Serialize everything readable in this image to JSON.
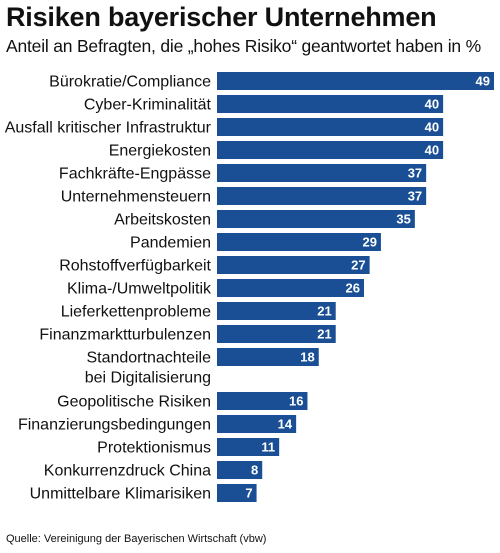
{
  "header": {
    "title": "Risiken bayerischer Unternehmen",
    "subtitle": "Anteil an Befragten, die „hohes Risiko“ geantwortet haben in %"
  },
  "footer": {
    "source": "Quelle: Vereinigung der Bayerischen Wirtschaft (vbw)"
  },
  "chart_data": {
    "type": "bar",
    "orientation": "horizontal",
    "title": "Risiken bayerischer Unternehmen",
    "subtitle": "Anteil an Befragten, die „hohes Risiko“ geantwortet haben in %",
    "categories": [
      "Bürokratie/Compliance",
      "Cyber-Kriminalität",
      "Ausfall kritischer Infrastruktur",
      "Energiekosten",
      "Fachkräfte-Engpässe",
      "Unternehmensteuern",
      "Arbeitskosten",
      "Pandemien",
      "Rohstoffverfügbarkeit",
      "Klima-/Umweltpolitik",
      "Lieferkettenprobleme",
      "Finanzmarktturbulenzen",
      "Standortnachteile\nbei Digitalisierung",
      "Geopolitische Risiken",
      "Finanzierungsbedingungen",
      "Protektionismus",
      "Konkurrenzdruck China",
      "Unmittelbare Klimarisiken"
    ],
    "values": [
      49,
      40,
      40,
      40,
      37,
      37,
      35,
      29,
      27,
      26,
      21,
      21,
      18,
      16,
      14,
      11,
      8,
      7
    ],
    "xlim": [
      0,
      49
    ],
    "grid": false,
    "legend": "none",
    "bar_color": "#1a4f96",
    "value_label_color": "#ffffff",
    "source": "Quelle: Vereinigung der Bayerischen Wirtschaft (vbw)"
  }
}
